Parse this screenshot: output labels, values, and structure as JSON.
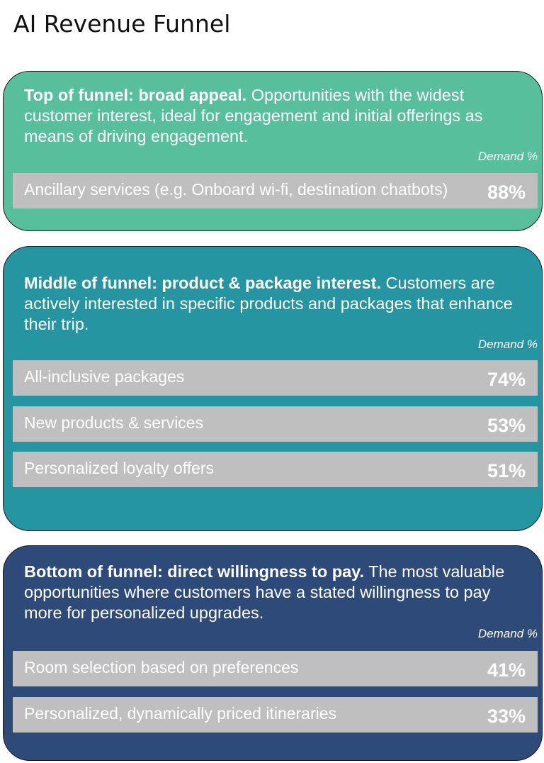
{
  "page_title": "AI Revenue Funnel",
  "stages": [
    {
      "heading": "Top of funnel: broad appeal.",
      "description": " Opportunities with the widest customer interest, ideal for engagement and initial offerings as means of driving engagement.",
      "demand_label": "Demand %",
      "color": "#58bf9c",
      "items": [
        {
          "label": "Ancillary services (e.g. Onboard wi-fi, destination chatbots)",
          "value": "88%"
        }
      ]
    },
    {
      "heading": "Middle of funnel: product & package interest.",
      "description": " Customers are actively interested in specific products and packages that enhance their trip.",
      "demand_label": "Demand %",
      "color": "#2595a2",
      "items": [
        {
          "label": "All-inclusive packages",
          "value": "74%"
        },
        {
          "label": "New products & services",
          "value": "53%"
        },
        {
          "label": "Personalized loyalty offers",
          "value": "51%"
        }
      ]
    },
    {
      "heading": "Bottom of funnel: direct willingness to pay.",
      "description": " The most valuable opportunities where customers have a stated willingness to pay more for personalized upgrades.",
      "demand_label": "Demand %",
      "color": "#2e4a78",
      "items": [
        {
          "label": "Room selection based on preferences",
          "value": "41%"
        },
        {
          "label": "Personalized, dynamically priced itineraries",
          "value": "33%"
        }
      ]
    }
  ]
}
